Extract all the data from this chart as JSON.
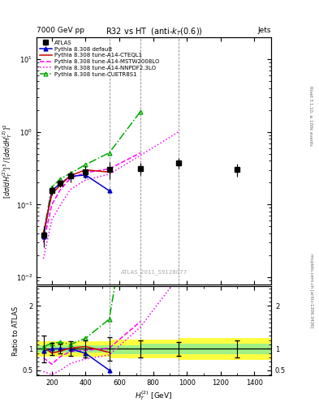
{
  "title": "R32 vs HT (anti-k_{T}(0.6))",
  "top_left_label": "7000 GeV pp",
  "top_right_label": "Jets",
  "right_label_top": "Rivet 3.1.10, ≥ 100k events",
  "right_label_bottom": "mcplots.cern.ch [arXiv:1306.3436]",
  "watermark": "ATLAS_2011_S9128077",
  "xlabel": "H$_T^{(2)}$ [GeV]",
  "ylabel": "$[d\\sigma/dH_T^{(2)}]^3 / [d\\sigma/dH_T^{(2)}]^2$",
  "ylabel_ratio": "Ratio to ATLAS",
  "ylim_main": [
    0.008,
    20
  ],
  "ylim_ratio": [
    0.38,
    2.45
  ],
  "xlim": [
    110,
    1500
  ],
  "atlas_x": [
    150,
    200,
    250,
    310,
    400,
    540,
    725,
    950,
    1300
  ],
  "atlas_y": [
    0.038,
    0.155,
    0.195,
    0.245,
    0.285,
    0.305,
    0.315,
    0.375,
    0.305
  ],
  "atlas_yerr_lo": [
    0.012,
    0.022,
    0.022,
    0.042,
    0.058,
    0.082,
    0.062,
    0.062,
    0.062
  ],
  "atlas_yerr_hi": [
    0.012,
    0.022,
    0.022,
    0.042,
    0.058,
    0.082,
    0.062,
    0.062,
    0.062
  ],
  "pythia_default_x": [
    150,
    200,
    250,
    310,
    400,
    540
  ],
  "pythia_default_y": [
    0.036,
    0.155,
    0.195,
    0.245,
    0.255,
    0.155
  ],
  "pythia_cteql1_x": [
    150,
    200,
    250,
    310,
    400,
    540
  ],
  "pythia_cteql1_y": [
    0.04,
    0.14,
    0.185,
    0.25,
    0.3,
    0.28
  ],
  "pythia_mstw_x": [
    150,
    200,
    250,
    310,
    400,
    540,
    725
  ],
  "pythia_mstw_y": [
    0.03,
    0.1,
    0.16,
    0.23,
    0.275,
    0.31,
    0.515
  ],
  "pythia_nnpdf_x": [
    150,
    200,
    250,
    310,
    400,
    540,
    725,
    950
  ],
  "pythia_nnpdf_y": [
    0.018,
    0.062,
    0.098,
    0.162,
    0.218,
    0.262,
    0.475,
    1.0
  ],
  "pythia_cuetr_x": [
    150,
    200,
    250,
    310,
    400,
    540,
    725
  ],
  "pythia_cuetr_y": [
    0.04,
    0.175,
    0.225,
    0.27,
    0.355,
    0.515,
    1.9
  ],
  "ratio_default_x": [
    150,
    200,
    250,
    310,
    400,
    540
  ],
  "ratio_default_y": [
    0.95,
    1.0,
    1.0,
    1.0,
    0.895,
    0.505
  ],
  "ratio_cteql1_x": [
    150,
    200,
    250,
    310,
    400,
    540
  ],
  "ratio_cteql1_y": [
    1.05,
    0.9,
    0.948,
    1.02,
    1.053,
    0.918
  ],
  "ratio_mstw_x": [
    150,
    200,
    250,
    310,
    400,
    540,
    725
  ],
  "ratio_mstw_y": [
    0.79,
    0.645,
    0.82,
    0.938,
    0.965,
    1.016,
    1.635
  ],
  "ratio_nnpdf_x": [
    150,
    200,
    250,
    310,
    400,
    540,
    725,
    950
  ],
  "ratio_nnpdf_y": [
    0.474,
    0.4,
    0.503,
    0.661,
    0.765,
    0.859,
    1.508,
    2.667
  ],
  "ratio_cuetr_x": [
    150,
    200,
    250,
    310,
    400,
    540,
    725
  ],
  "ratio_cuetr_y": [
    1.053,
    1.129,
    1.154,
    1.102,
    1.246,
    1.688,
    6.03
  ],
  "atlas_ratio_yerr_lo": [
    0.316,
    0.142,
    0.113,
    0.171,
    0.204,
    0.269,
    0.197,
    0.165,
    0.203
  ],
  "atlas_ratio_yerr_hi": [
    0.316,
    0.142,
    0.113,
    0.171,
    0.204,
    0.269,
    0.197,
    0.165,
    0.203
  ],
  "band_edges": [
    100,
    400,
    540,
    725,
    950,
    1500
  ],
  "band_green_lo": [
    0.92,
    0.92,
    0.88,
    0.88,
    0.88,
    0.88
  ],
  "band_green_hi": [
    1.08,
    1.08,
    1.08,
    1.12,
    1.12,
    1.12
  ],
  "band_yellow_lo": [
    0.82,
    0.82,
    0.78,
    0.78,
    0.74,
    0.74
  ],
  "band_yellow_hi": [
    1.18,
    1.18,
    1.22,
    1.22,
    1.26,
    1.26
  ],
  "vlines_x": [
    540,
    725,
    950
  ],
  "color_atlas": "#000000",
  "color_default": "#0000cc",
  "color_cteql1": "#cc0000",
  "color_mstw": "#ff00ff",
  "color_nnpdf": "#ff00ff",
  "color_cuetr": "#00aa00"
}
